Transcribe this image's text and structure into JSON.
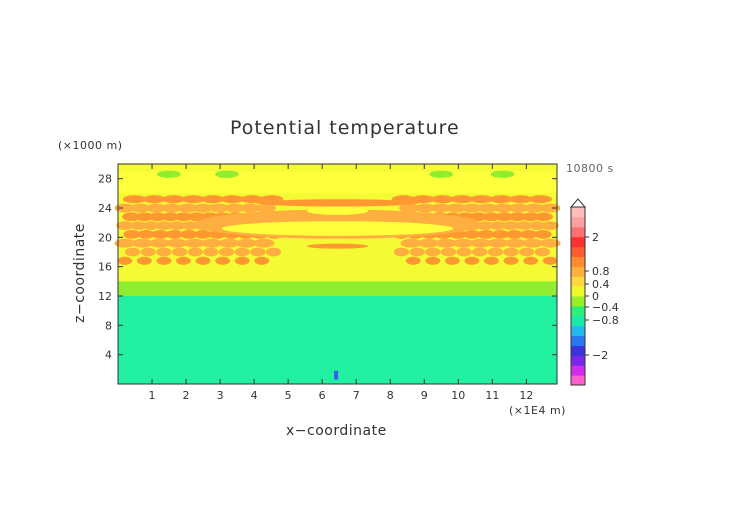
{
  "chart_data": {
    "type": "heatmap",
    "title": "Potential temperature",
    "xlabel": "x−coordinate",
    "ylabel": "z−coordinate",
    "x_unit": "(×1E4 m)",
    "y_unit": "(×1000 m)",
    "time_label": "10800 s",
    "x_ticks": [
      "1",
      "2",
      "3",
      "4",
      "5",
      "6",
      "7",
      "8",
      "9",
      "10",
      "11",
      "12"
    ],
    "y_ticks": [
      "4",
      "8",
      "12",
      "16",
      "20",
      "24",
      "28"
    ],
    "xlim": [
      0,
      12.9
    ],
    "ylim": [
      0,
      30
    ],
    "colorbar": {
      "labels": [
        "2",
        "0.8",
        "0.4",
        "0",
        "−0.4",
        "−0.8",
        "−2"
      ],
      "colors": [
        "#ff5fd0",
        "#d02cf0",
        "#7a28e8",
        "#3a34d8",
        "#2a78f0",
        "#24b8f0",
        "#18e8a8",
        "#2cf07c",
        "#9af028",
        "#ecf828",
        "#ffd83c",
        "#ffb03c",
        "#ff8a30",
        "#ff5a30",
        "#ff3030",
        "#ff7070",
        "#ffa0a0",
        "#ffbcbc"
      ],
      "shades": {
        "base": "#20f0a0",
        "light_yellow": "#f4fa34",
        "yellow": "#ffff3c",
        "light_green": "#90ee30",
        "orange": "#ffae40",
        "deep_orange": "#ff9830",
        "blue": "#3a5cf0"
      }
    }
  }
}
